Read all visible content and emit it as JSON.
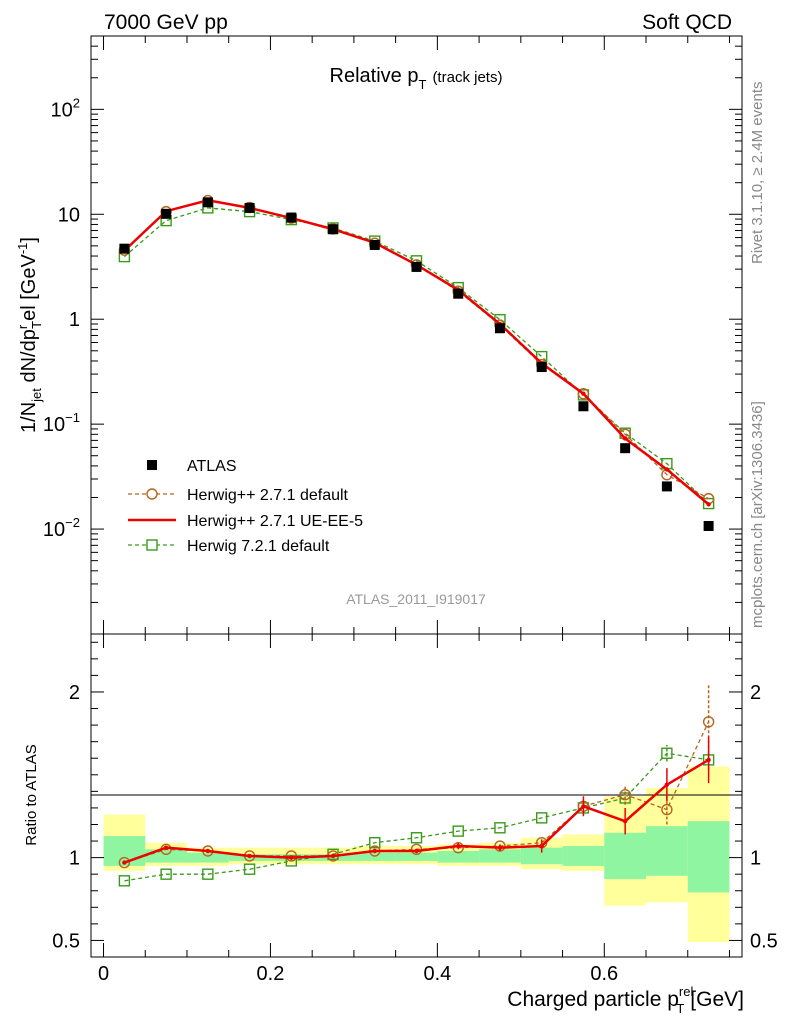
{
  "header": {
    "energy": "7000 GeV pp",
    "category": "Soft QCD"
  },
  "side_labels": {
    "rivet": "Rivet 3.1.10, ≥ 2.4M events",
    "source": "mcplots.cern.ch [arXiv:1306.3436]"
  },
  "colors": {
    "atlas": "#000000",
    "herwigpp_default": "#b5651d",
    "herwigpp_ueee5": "#ee0000",
    "herwig721": "#3a9a1a",
    "band_inner": "#90f5a0",
    "band_outer": "#ffff9c"
  },
  "chart_data": [
    {
      "type": "scatter",
      "title": "Relative p_T (track jets)",
      "title_main": "Relative p",
      "title_sub": "T",
      "title_suffix": "(track jets)",
      "analysis_id": "ATLAS_2011_I919017",
      "ylabel": "1/N_jet dN/dp_T^rel [GeV^-1]",
      "yscale": "log",
      "ylim": [
        0.001,
        500
      ],
      "yticks": [
        {
          "value": 0.01,
          "label": "10",
          "exp": "−2"
        },
        {
          "value": 0.1,
          "label": "10",
          "exp": "−1"
        },
        {
          "value": 1,
          "label": "1",
          "exp": ""
        },
        {
          "value": 10,
          "label": "10",
          "exp": ""
        },
        {
          "value": 100,
          "label": "10",
          "exp": "2"
        }
      ],
      "xlim": [
        -0.015,
        0.765
      ],
      "x": [
        0.025,
        0.075,
        0.125,
        0.175,
        0.225,
        0.275,
        0.325,
        0.375,
        0.425,
        0.475,
        0.525,
        0.575,
        0.625,
        0.675,
        0.725
      ],
      "series": [
        {
          "name": "ATLAS",
          "style": "data",
          "values": [
            4.7,
            10.1,
            13.0,
            11.5,
            9.3,
            7.2,
            5.1,
            3.15,
            1.75,
            0.82,
            0.35,
            0.148,
            0.059,
            0.0255,
            0.0107
          ]
        },
        {
          "name": "Herwig++ 2.7.1 default",
          "style": "circle-dashed",
          "values": [
            4.55,
            10.6,
            13.5,
            11.6,
            9.2,
            7.25,
            5.3,
            3.3,
            1.85,
            0.88,
            0.37,
            0.195,
            0.08,
            0.033,
            0.0195
          ]
        },
        {
          "name": "Herwig++ 2.7.1 UE-EE-5",
          "style": "solid",
          "values": [
            4.5,
            10.7,
            13.6,
            11.5,
            9.2,
            7.2,
            5.35,
            3.3,
            1.9,
            0.9,
            0.38,
            0.195,
            0.073,
            0.037,
            0.0172
          ]
        },
        {
          "name": "Herwig 7.2.1 default",
          "style": "square-dashed",
          "values": [
            3.95,
            8.7,
            11.5,
            10.6,
            8.9,
            7.4,
            5.55,
            3.6,
            2.0,
            0.99,
            0.44,
            0.19,
            0.082,
            0.042,
            0.0175
          ]
        }
      ],
      "legend_position": "bottom-left",
      "grid": false
    },
    {
      "type": "scatter",
      "xlabel": "Charged particle p_T^rel [GeV]",
      "xlabel_main": "Charged particle p",
      "xlabel_sub": "T",
      "xlabel_sup": "rel",
      "xlabel_suffix": "[GeV]",
      "ylabel": "Ratio to ATLAS",
      "ylim": [
        0.4,
        2.35
      ],
      "yticks": [
        0.5,
        1,
        2
      ],
      "ytick_labels": [
        "0.5",
        "1",
        "2"
      ],
      "xlim": [
        -0.015,
        0.765
      ],
      "xticks": [
        0,
        0.2,
        0.4,
        0.6
      ],
      "xtick_labels": [
        "0",
        "0.2",
        "0.4",
        "0.6"
      ],
      "bands": {
        "bin_edges": [
          0,
          0.05,
          0.1,
          0.15,
          0.2,
          0.25,
          0.3,
          0.35,
          0.4,
          0.45,
          0.5,
          0.55,
          0.6,
          0.65,
          0.7,
          0.75
        ],
        "inner": [
          [
            0.95,
            1.13
          ],
          [
            0.97,
            1.05
          ],
          [
            0.97,
            1.03
          ],
          [
            0.98,
            1.02
          ],
          [
            0.98,
            1.02
          ],
          [
            0.98,
            1.02
          ],
          [
            0.98,
            1.03
          ],
          [
            0.98,
            1.03
          ],
          [
            0.97,
            1.04
          ],
          [
            0.97,
            1.05
          ],
          [
            0.96,
            1.06
          ],
          [
            0.95,
            1.07
          ],
          [
            0.87,
            1.15
          ],
          [
            0.89,
            1.19
          ],
          [
            0.79,
            1.22
          ]
        ],
        "outer": [
          [
            0.92,
            1.26
          ],
          [
            0.95,
            1.09
          ],
          [
            0.95,
            1.06
          ],
          [
            0.96,
            1.06
          ],
          [
            0.96,
            1.06
          ],
          [
            0.96,
            1.06
          ],
          [
            0.96,
            1.07
          ],
          [
            0.96,
            1.07
          ],
          [
            0.95,
            1.08
          ],
          [
            0.95,
            1.09
          ],
          [
            0.93,
            1.12
          ],
          [
            0.92,
            1.14
          ],
          [
            0.71,
            1.37
          ],
          [
            0.73,
            1.42
          ],
          [
            0.49,
            1.55
          ]
        ]
      },
      "series": [
        {
          "name": "Herwig++ 2.7.1 default",
          "style": "circle-dashed",
          "values": [
            0.97,
            1.05,
            1.04,
            1.01,
            1.01,
            1.01,
            1.04,
            1.05,
            1.06,
            1.07,
            1.09,
            1.31,
            1.38,
            1.29,
            1.82
          ],
          "err": [
            0,
            0,
            0,
            0,
            0,
            0,
            0,
            0,
            0,
            0,
            0,
            0,
            0.06,
            0.09,
            0.22
          ]
        },
        {
          "name": "Herwig++ 2.7.1 UE-EE-5",
          "style": "solid",
          "values": [
            0.97,
            1.06,
            1.04,
            1.01,
            1.0,
            1.01,
            1.04,
            1.04,
            1.07,
            1.06,
            1.07,
            1.31,
            1.22,
            1.44,
            1.59
          ],
          "err": [
            0,
            0,
            0,
            0,
            0,
            0,
            0,
            0,
            0.02,
            0.02,
            0.04,
            0.06,
            0.08,
            0.1,
            0.14
          ]
        },
        {
          "name": "Herwig 7.2.1 default",
          "style": "square-dashed",
          "values": [
            0.86,
            0.9,
            0.9,
            0.93,
            0.98,
            1.02,
            1.09,
            1.12,
            1.16,
            1.18,
            1.24,
            1.3,
            1.36,
            1.63,
            1.59
          ],
          "err": [
            0,
            0,
            0,
            0,
            0,
            0,
            0,
            0,
            0,
            0,
            0,
            0,
            0.04,
            0.05,
            0.06
          ]
        }
      ]
    }
  ]
}
